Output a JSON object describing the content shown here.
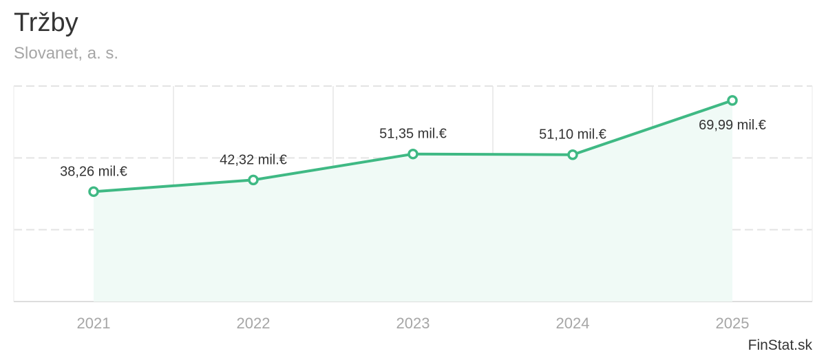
{
  "title": "Tržby",
  "subtitle": "Slovanet, a. s.",
  "credit": "FinStat.sk",
  "colors": {
    "line": "#3fb984",
    "area": "#f0faf6",
    "grid": "#e3e3e3",
    "axis_text": "#a6a6a6",
    "label_text": "#333333"
  },
  "chart_data": {
    "type": "area",
    "categories": [
      "2021",
      "2022",
      "2023",
      "2024",
      "2025"
    ],
    "series": [
      {
        "values": [
          38.26,
          42.32,
          51.35,
          51.1,
          69.99
        ],
        "labels": [
          "38,26 mil.€",
          "42,32 mil.€",
          "51,35 mil.€",
          "51,10 mil.€",
          "69,99 mil.€"
        ]
      }
    ],
    "ylim": [
      0,
      75
    ],
    "grid": true
  }
}
